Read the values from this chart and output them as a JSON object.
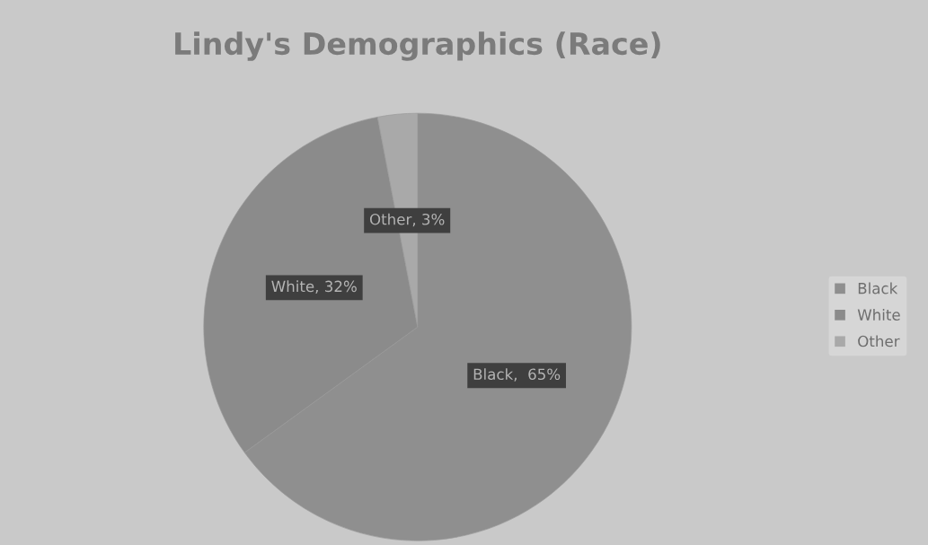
{
  "chart_data": {
    "type": "pie",
    "title": "Lindy's Demographics (Race)",
    "categories": [
      "Black",
      "White",
      "Other"
    ],
    "values": [
      65,
      32,
      3
    ],
    "colors": [
      "#8f8f8f",
      "#8b8b8b",
      "#a9a9a9"
    ],
    "value_labels": [
      "Black,  65%",
      "White, 32%",
      "Other, 3%"
    ],
    "legend": "right"
  }
}
